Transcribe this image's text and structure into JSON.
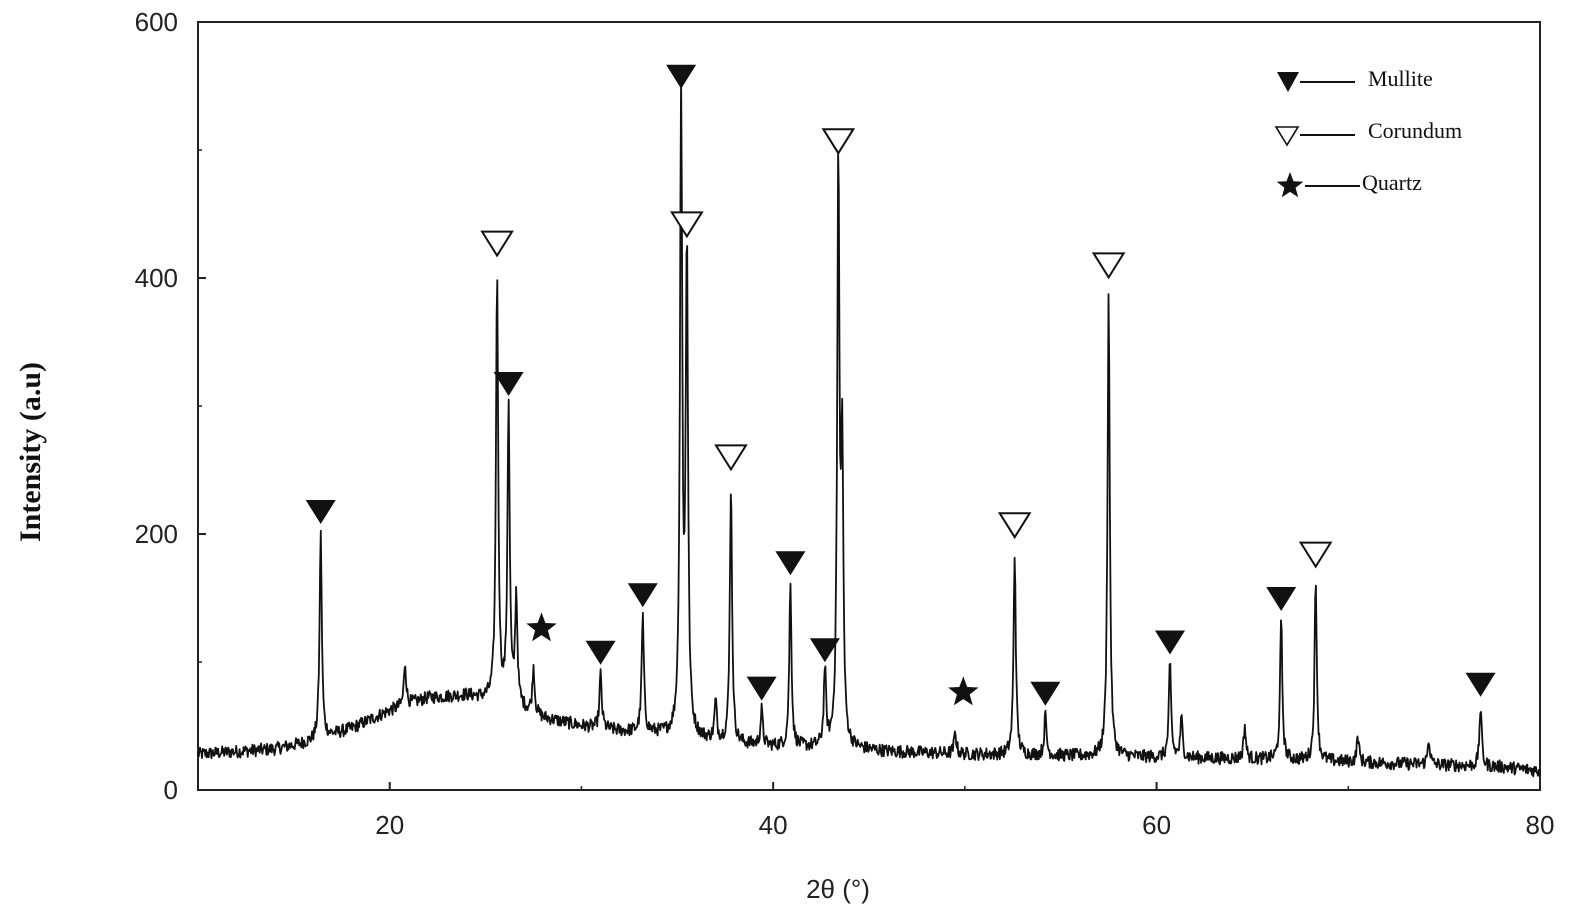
{
  "chart_data": {
    "type": "line",
    "title": "",
    "xlabel": "2θ (°)",
    "ylabel": "Intensity (a.u)",
    "xlim": [
      10,
      80
    ],
    "ylim": [
      0,
      600
    ],
    "xticks": [
      20,
      40,
      60,
      80
    ],
    "yticks": [
      0,
      200,
      400,
      600
    ],
    "x_tick_labels": [
      "20",
      "40",
      "60",
      "80"
    ],
    "y_tick_labels": [
      "0",
      "200",
      "400",
      "600"
    ],
    "grid": false,
    "legend_position": "top-right",
    "legend": [
      {
        "label": "Mullite",
        "marker": "filled-down-triangle"
      },
      {
        "label": "Corundum",
        "marker": "open-down-triangle"
      },
      {
        "label": "Quartz",
        "marker": "filled-star"
      }
    ],
    "peaks": [
      {
        "x": 16.4,
        "y": 200,
        "phase": "Mullite"
      },
      {
        "x": 20.8,
        "y": 100,
        "phase": ""
      },
      {
        "x": 25.6,
        "y": 405,
        "phase": "Corundum"
      },
      {
        "x": 26.2,
        "y": 300,
        "phase": "Mullite"
      },
      {
        "x": 26.6,
        "y": 150,
        "phase": ""
      },
      {
        "x": 27.5,
        "y": 95,
        "phase": "Quartz"
      },
      {
        "x": 31.0,
        "y": 90,
        "phase": "Mullite"
      },
      {
        "x": 33.2,
        "y": 135,
        "phase": "Mullite"
      },
      {
        "x": 35.2,
        "y": 540,
        "phase": "Mullite"
      },
      {
        "x": 35.5,
        "y": 420,
        "phase": "Corundum"
      },
      {
        "x": 37.0,
        "y": 68,
        "phase": ""
      },
      {
        "x": 37.8,
        "y": 238,
        "phase": "Corundum"
      },
      {
        "x": 39.4,
        "y": 62,
        "phase": "Mullite"
      },
      {
        "x": 40.9,
        "y": 160,
        "phase": "Mullite"
      },
      {
        "x": 42.7,
        "y": 92,
        "phase": "Mullite"
      },
      {
        "x": 43.4,
        "y": 485,
        "phase": "Corundum"
      },
      {
        "x": 43.6,
        "y": 260,
        "phase": ""
      },
      {
        "x": 49.5,
        "y": 45,
        "phase": "Quartz"
      },
      {
        "x": 52.6,
        "y": 185,
        "phase": "Corundum"
      },
      {
        "x": 54.2,
        "y": 58,
        "phase": "Mullite"
      },
      {
        "x": 57.5,
        "y": 388,
        "phase": "Corundum"
      },
      {
        "x": 60.7,
        "y": 98,
        "phase": "Mullite"
      },
      {
        "x": 61.3,
        "y": 55,
        "phase": ""
      },
      {
        "x": 64.6,
        "y": 50,
        "phase": ""
      },
      {
        "x": 66.5,
        "y": 132,
        "phase": "Mullite"
      },
      {
        "x": 68.3,
        "y": 162,
        "phase": "Corundum"
      },
      {
        "x": 70.5,
        "y": 42,
        "phase": ""
      },
      {
        "x": 74.2,
        "y": 40,
        "phase": ""
      },
      {
        "x": 76.9,
        "y": 65,
        "phase": "Mullite"
      }
    ],
    "background": [
      [
        10,
        28
      ],
      [
        14,
        32
      ],
      [
        16,
        38
      ],
      [
        18,
        48
      ],
      [
        20,
        62
      ],
      [
        22,
        72
      ],
      [
        24,
        74
      ],
      [
        25.4,
        70
      ],
      [
        26.5,
        66
      ],
      [
        28,
        56
      ],
      [
        30,
        50
      ],
      [
        32,
        46
      ],
      [
        34,
        44
      ],
      [
        36,
        40
      ],
      [
        38,
        36
      ],
      [
        40,
        34
      ],
      [
        42,
        33
      ],
      [
        44,
        32
      ],
      [
        46,
        30
      ],
      [
        48,
        29
      ],
      [
        50,
        28
      ],
      [
        54,
        27
      ],
      [
        58,
        26
      ],
      [
        62,
        25
      ],
      [
        66,
        24
      ],
      [
        70,
        22
      ],
      [
        74,
        20
      ],
      [
        78,
        18
      ],
      [
        80,
        15
      ]
    ],
    "noise_amplitude": 5
  }
}
